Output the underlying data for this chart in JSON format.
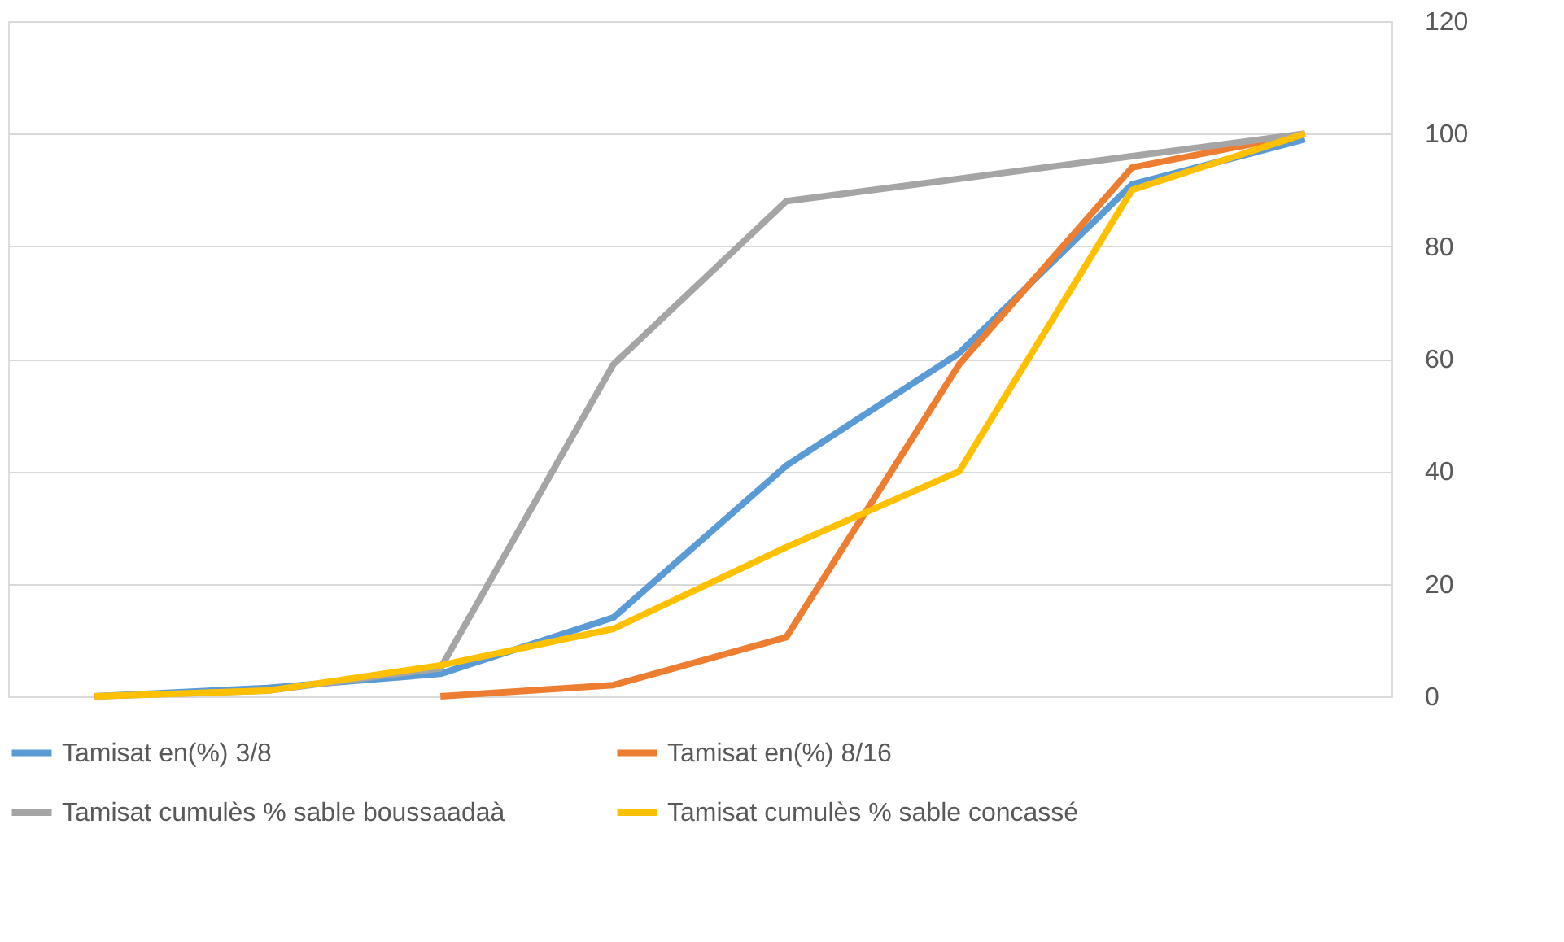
{
  "chart_data": {
    "type": "line",
    "categories": [
      null,
      null,
      null,
      null,
      null,
      null,
      null,
      null
    ],
    "series": [
      {
        "name": "Tamisat en(%) 3/8",
        "color": "#5b9bd5",
        "values": [
          0,
          1.5,
          4,
          14,
          41,
          61,
          91,
          99
        ]
      },
      {
        "name": "Tamisat en(%) 8/16",
        "color": "#ed7d31",
        "values": [
          null,
          null,
          0,
          2,
          10.5,
          59,
          94,
          100
        ]
      },
      {
        "name": "Tamisat cumulès % sable boussaadaà",
        "color": "#a5a5a5",
        "values": [
          0,
          1,
          5,
          59,
          88,
          92,
          96,
          100
        ]
      },
      {
        "name": "Tamisat cumulès % sable concassé",
        "color": "#ffc000",
        "values": [
          0,
          1,
          5.5,
          12,
          26.5,
          40,
          90,
          100
        ]
      }
    ],
    "ylim": [
      0,
      120
    ],
    "yticks": [
      0,
      20,
      40,
      60,
      80,
      100,
      120
    ],
    "grid": "y",
    "legend": "bottom",
    "marker": "none",
    "line_style": "solid"
  }
}
